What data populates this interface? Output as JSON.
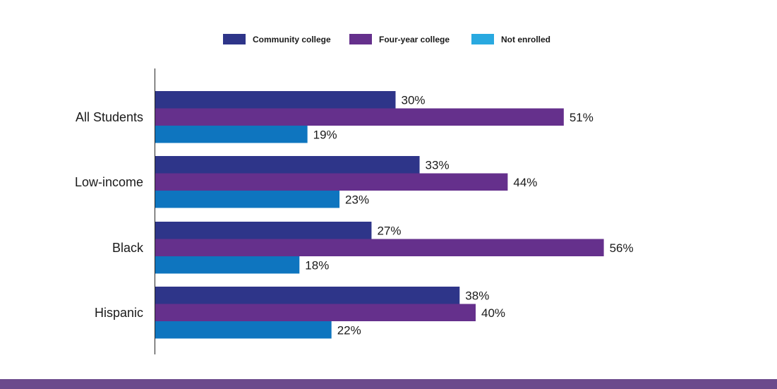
{
  "chart_data": {
    "type": "bar",
    "orientation": "horizontal",
    "title": "",
    "xlabel": "",
    "ylabel": "",
    "xlim": [
      0,
      100
    ],
    "grid": false,
    "legend_position": "top",
    "categories": [
      "All Students",
      "Low-income",
      "Black",
      "Hispanic"
    ],
    "series": [
      {
        "name": "Community college",
        "values": [
          30,
          33,
          27,
          38
        ],
        "labels": [
          "30%",
          "33%",
          "27%",
          "38%"
        ],
        "legend_color": "#2e3589",
        "bar_color": "#2e3589"
      },
      {
        "name": "Four-year college",
        "values": [
          51,
          44,
          56,
          40
        ],
        "labels": [
          "51%",
          "44%",
          "56%",
          "40%"
        ],
        "legend_color": "#65308c",
        "bar_color": "#65308c"
      },
      {
        "name": "Not enrolled",
        "values": [
          19,
          23,
          18,
          22
        ],
        "labels": [
          "19%",
          "23%",
          "18%",
          "22%"
        ],
        "legend_color": "#29a9e0",
        "bar_color": "#0e75bf"
      }
    ]
  },
  "footer": {
    "color": "#6b4a8c"
  }
}
